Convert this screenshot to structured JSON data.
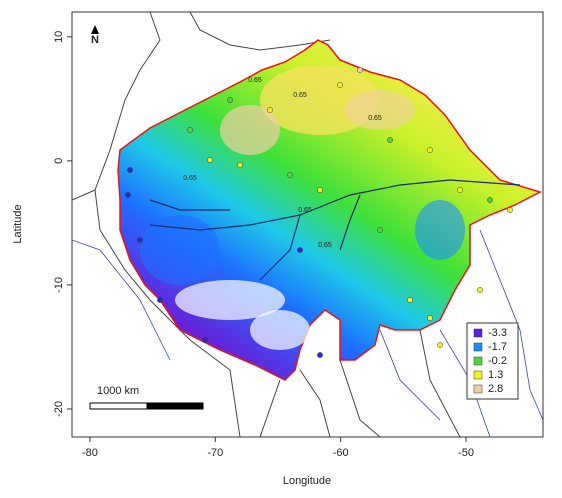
{
  "map": {
    "xlabel": "Longitude",
    "ylabel": "Latitude",
    "xlim": [
      -81.43,
      -43.86
    ],
    "ylim": [
      -22.26,
      12.0
    ],
    "xticks": [
      -80,
      -70,
      -60,
      -50
    ],
    "yticks": [
      -20,
      -10,
      0,
      10
    ],
    "north_label": "N",
    "scale_bar_label": "1000 km",
    "contour_labels": [
      "0.65",
      "0.65",
      "0.65",
      "0.65",
      "0.65",
      "0.65"
    ],
    "legend": [
      {
        "label": "-3.3",
        "color": "#5b22d9"
      },
      {
        "label": "-1.7",
        "color": "#1e8fff"
      },
      {
        "label": "-0.2",
        "color": "#4fd43a"
      },
      {
        "label": "1.3",
        "color": "#f2f21c"
      },
      {
        "label": "2.8",
        "color": "#f1cfa5"
      }
    ]
  }
}
